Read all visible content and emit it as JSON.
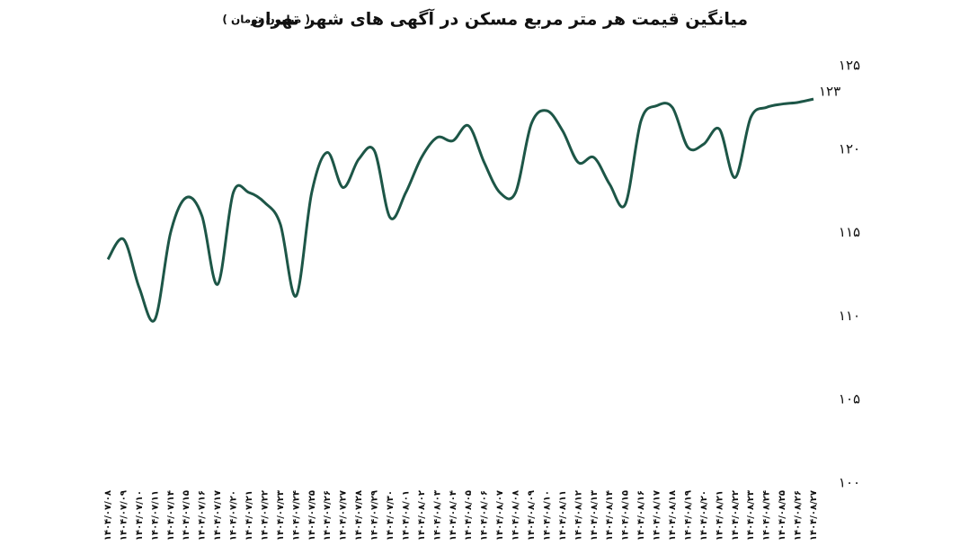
{
  "chart_data": {
    "type": "line",
    "title": "میانگین قیمت هر متر مربع مسکن در آگهی های شهر تهران",
    "subtitle": "( میلیون تومان )",
    "categories": [
      "۱۴۰۴/۰۷/۰۸",
      "۱۴۰۴/۰۷/۰۹",
      "۱۴۰۴/۰۷/۱۰",
      "۱۴۰۴/۰۷/۱۱",
      "۱۴۰۴/۰۷/۱۴",
      "۱۴۰۴/۰۷/۱۵",
      "۱۴۰۴/۰۷/۱۶",
      "۱۴۰۴/۰۷/۱۷",
      "۱۴۰۴/۰۷/۲۰",
      "۱۴۰۴/۰۷/۲۱",
      "۱۴۰۴/۰۷/۲۲",
      "۱۴۰۴/۰۷/۲۳",
      "۱۴۰۴/۰۷/۲۴",
      "۱۴۰۴/۰۷/۲۵",
      "۱۴۰۴/۰۷/۲۶",
      "۱۴۰۴/۰۷/۲۷",
      "۱۴۰۴/۰۷/۲۸",
      "۱۴۰۴/۰۷/۲۹",
      "۱۴۰۴/۰۷/۳۰",
      "۱۴۰۴/۰۸/۰۱",
      "۱۴۰۴/۰۸/۰۲",
      "۱۴۰۴/۰۸/۰۳",
      "۱۴۰۴/۰۸/۰۴",
      "۱۴۰۴/۰۸/۰۵",
      "۱۴۰۴/۰۸/۰۶",
      "۱۴۰۴/۰۸/۰۷",
      "۱۴۰۴/۰۸/۰۸",
      "۱۴۰۴/۰۸/۰۹",
      "۱۴۰۴/۰۸/۱۰",
      "۱۴۰۴/۰۸/۱۱",
      "۱۴۰۴/۰۸/۱۲",
      "۱۴۰۴/۰۸/۱۳",
      "۱۴۰۴/۰۸/۱۴",
      "۱۴۰۴/۰۸/۱۵",
      "۱۴۰۴/۰۸/۱۶",
      "۱۴۰۴/۰۸/۱۷",
      "۱۴۰۴/۰۸/۱۸",
      "۱۴۰۴/۰۸/۱۹",
      "۱۴۰۴/۰۸/۲۰",
      "۱۴۰۴/۰۸/۲۱",
      "۱۴۰۴/۰۸/۲۲",
      "۱۴۰۴/۰۸/۲۳",
      "۱۴۰۴/۰۸/۲۴",
      "۱۴۰۴/۰۸/۲۵",
      "۱۴۰۴/۰۸/۲۶",
      "۱۴۰۴/۰۸/۲۷"
    ],
    "values": [
      113.4,
      114.6,
      111.7,
      109.8,
      115.0,
      117.1,
      116.0,
      111.9,
      117.4,
      117.4,
      116.8,
      115.5,
      111.2,
      117.4,
      119.8,
      117.7,
      119.4,
      119.9,
      115.9,
      117.4,
      119.5,
      120.7,
      120.5,
      121.4,
      119.2,
      117.4,
      117.4,
      121.5,
      122.3,
      121.1,
      119.2,
      119.5,
      117.9,
      116.7,
      121.7,
      122.6,
      122.5,
      120.1,
      120.3,
      121.2,
      118.3,
      121.9,
      122.5,
      122.7,
      122.8,
      123
    ],
    "value_labels": [
      null,
      null,
      null,
      null,
      null,
      null,
      null,
      null,
      null,
      null,
      null,
      null,
      null,
      null,
      null,
      null,
      null,
      null,
      null,
      null,
      null,
      null,
      null,
      null,
      null,
      null,
      null,
      null,
      null,
      null,
      null,
      null,
      null,
      null,
      null,
      null,
      null,
      null,
      null,
      null,
      null,
      null,
      null,
      null,
      null,
      "۱۲۳"
    ],
    "color": "#1d5647",
    "ylim": [
      100,
      125
    ],
    "yticks": [
      {
        "value": 100,
        "label": "۱۰۰"
      },
      {
        "value": 105,
        "label": "۱۰۵"
      },
      {
        "value": 110,
        "label": "۱۱۰"
      },
      {
        "value": 115,
        "label": "۱۱۵"
      },
      {
        "value": 120,
        "label": "۱۲۰"
      },
      {
        "value": 125,
        "label": "۱۲۵"
      }
    ],
    "y_axis_side": "right",
    "grid": false
  }
}
